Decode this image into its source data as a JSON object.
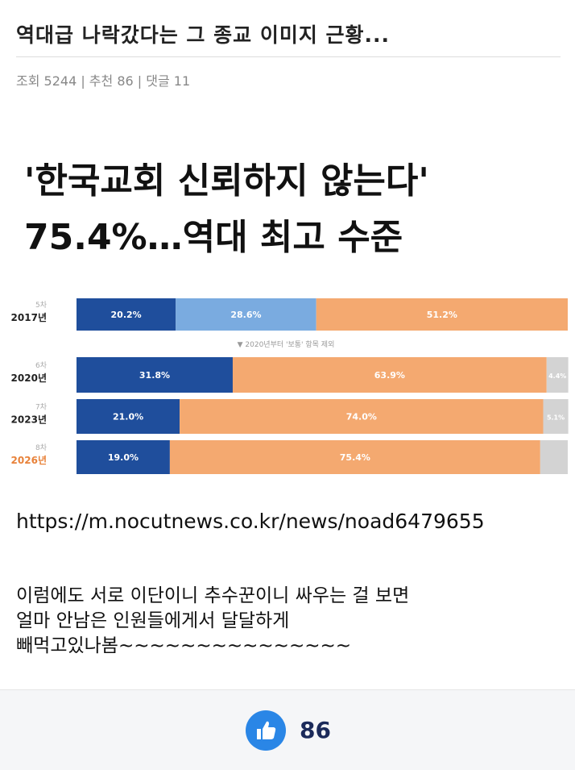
{
  "post": {
    "title": "역대급 나락갔다는 그 종교 이미지 근황...",
    "meta": "조회 5244 | 추천 86 | 댓글 11",
    "image_headline": "'한국교회 신뢰하지 않는다' 75.4%…역대 최고 수준",
    "link": "https://m.nocutnews.co.kr/news/noad6479655",
    "body": [
      "이럼에도 서로 이단이니 추수꾼이니 싸우는 걸 보면",
      "얼마 안남은 인원들에게서 달달하게",
      "빼먹고있나봄~~~~~~~~~~~~~~~"
    ],
    "likes": "86"
  },
  "chart_data": {
    "type": "stacked-bar-horizontal",
    "categories": [
      "2017년",
      "2020년",
      "2023년",
      "2026년"
    ],
    "category_sublabels": [
      "5차",
      "6차",
      "7차",
      "8차"
    ],
    "category_colors": [
      "#222222",
      "#222222",
      "#222222",
      "#e8823a"
    ],
    "annotation": "▼ 2020년부터 '보통' 항목 제외",
    "xlim": [
      0,
      100
    ],
    "series": [
      {
        "color": "#1f4e9c",
        "values": [
          20.2,
          31.8,
          21.0,
          19.0
        ],
        "value_labels": [
          "20.2%",
          "31.8%",
          "21.0%",
          "19.0%"
        ]
      },
      {
        "color": "#7aabe0",
        "values": [
          28.6,
          null,
          null,
          null
        ],
        "value_labels": [
          "28.6%",
          null,
          null,
          null
        ]
      },
      {
        "color": "#f4a970",
        "values": [
          51.2,
          63.9,
          74.0,
          75.4
        ],
        "value_labels": [
          "51.2%",
          "63.9%",
          "74.0%",
          "75.4%"
        ]
      },
      {
        "color": "#d3d3d3",
        "values": [
          null,
          4.4,
          5.1,
          5.6
        ],
        "value_labels": [
          null,
          "4.4%",
          "5.1%",
          null
        ]
      }
    ]
  }
}
